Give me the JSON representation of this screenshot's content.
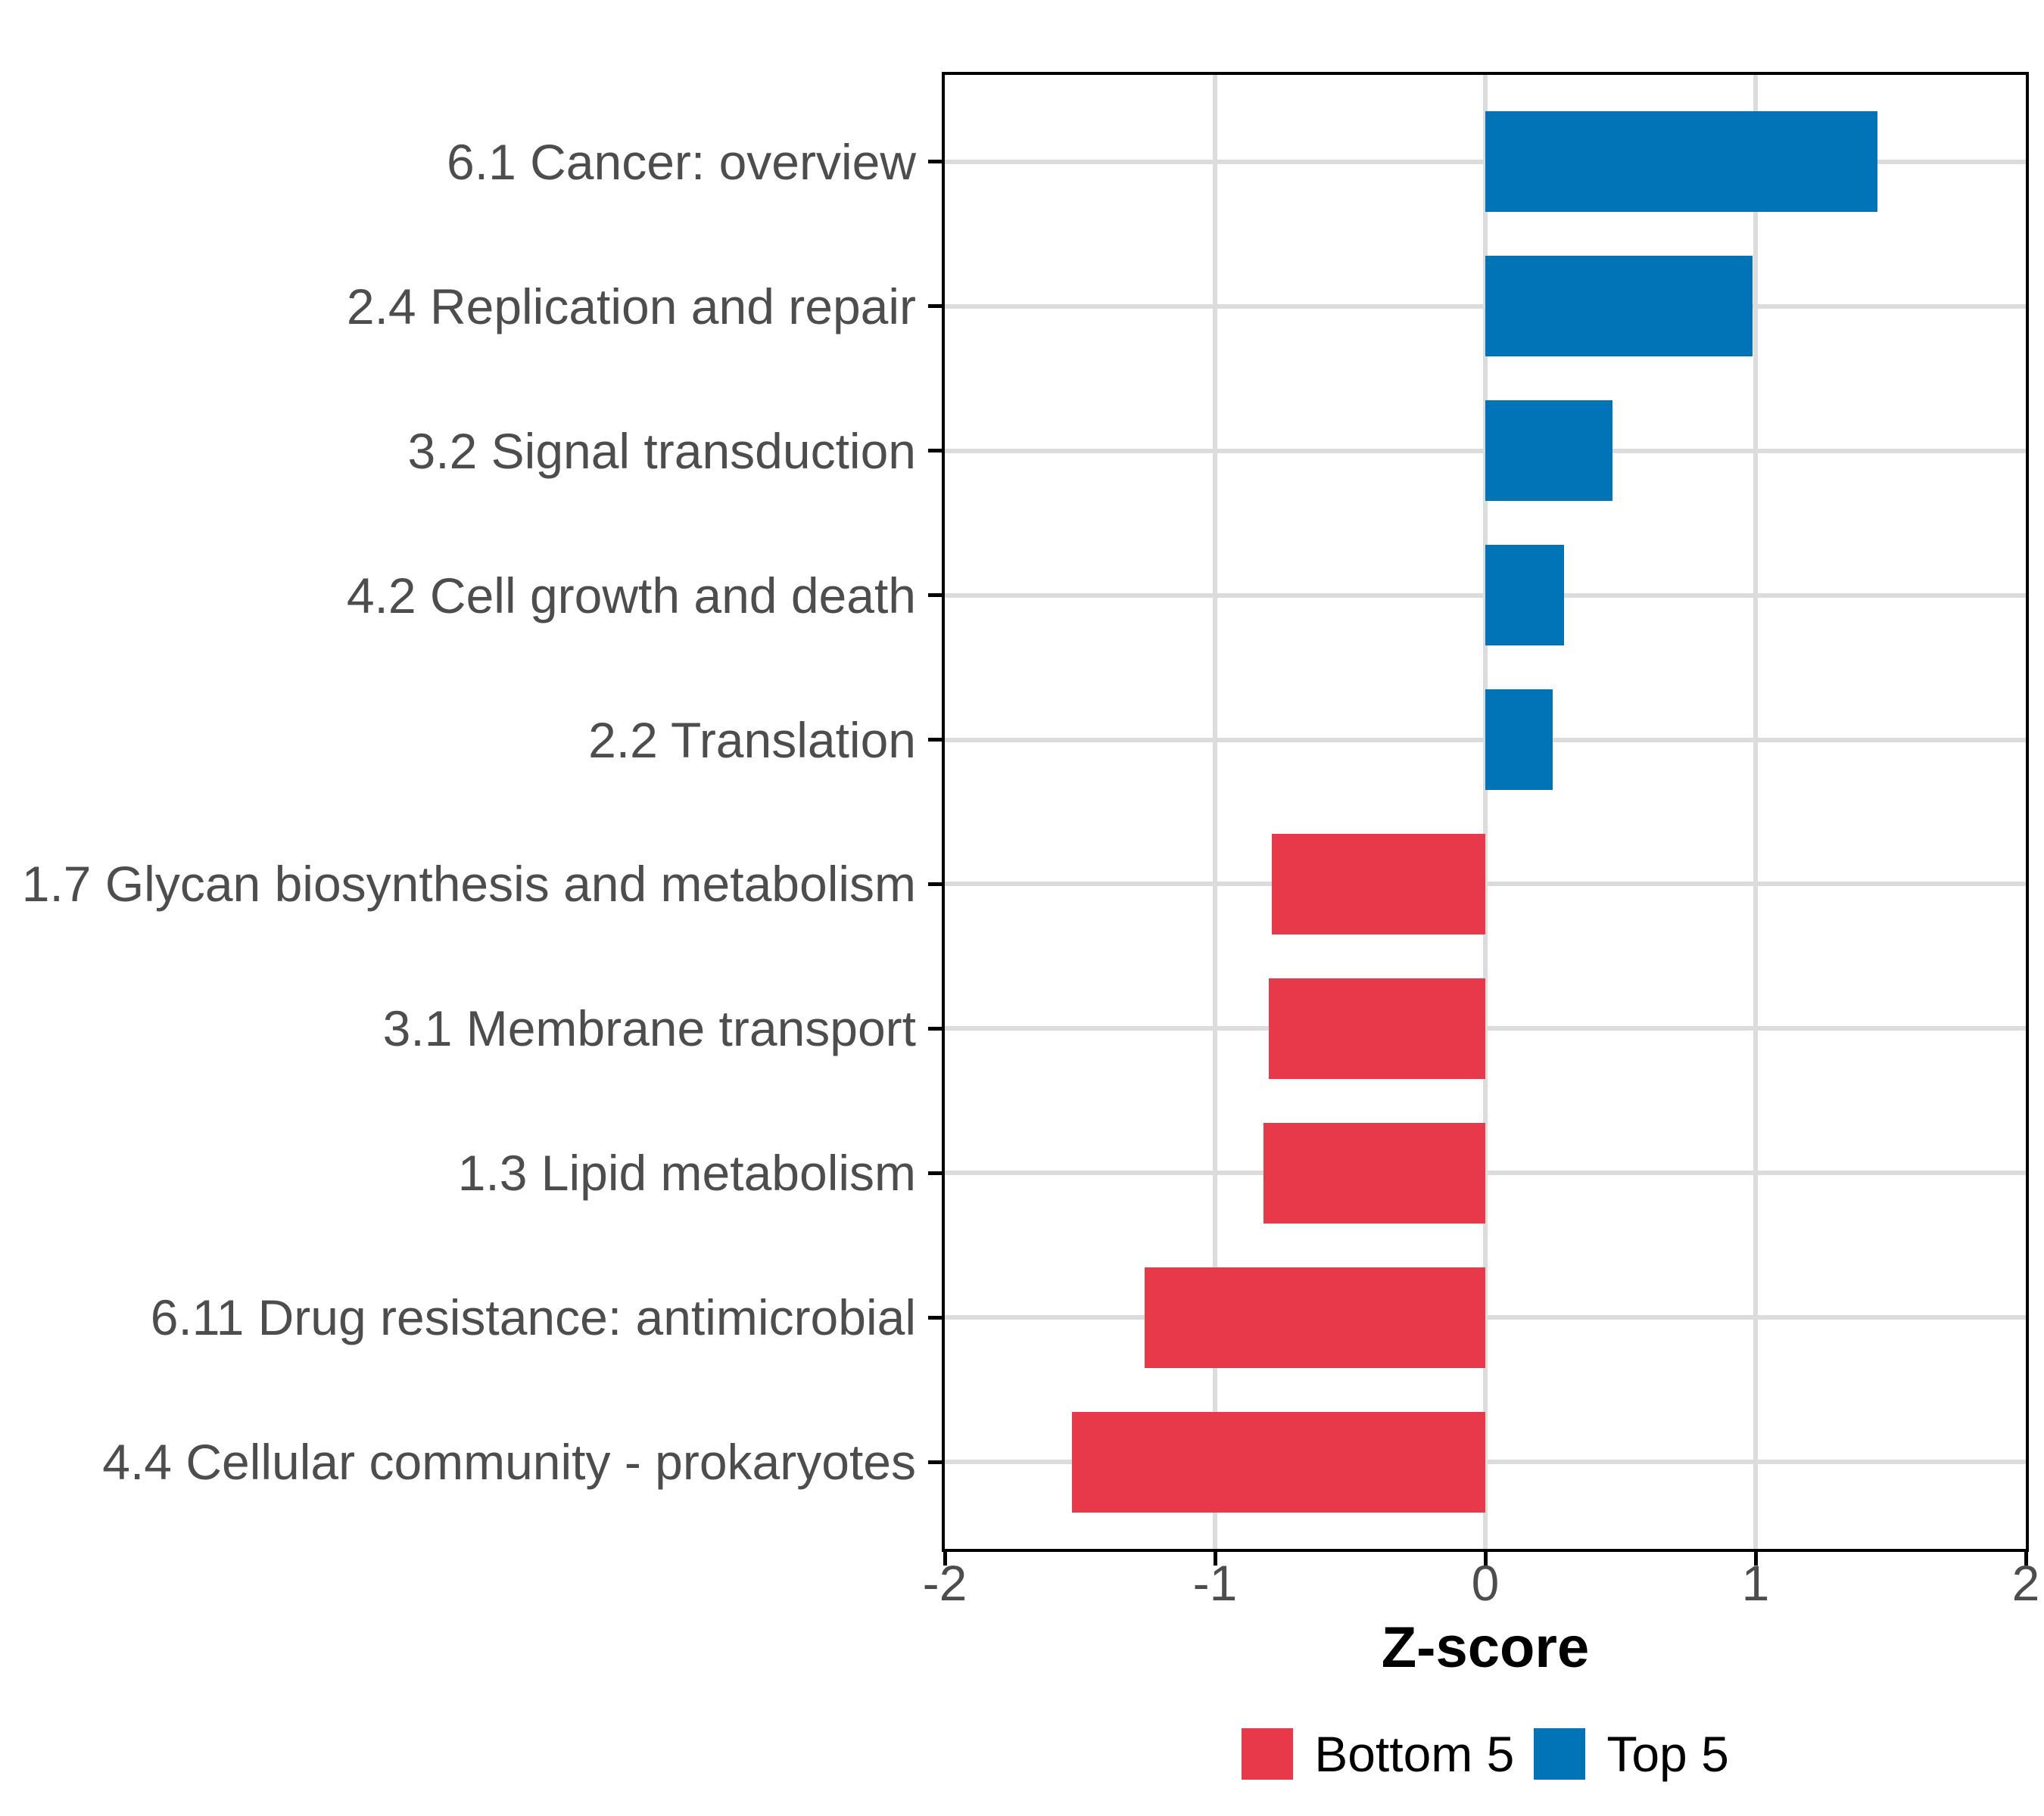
{
  "chart_data": {
    "type": "bar",
    "orientation": "horizontal",
    "title": "",
    "xlabel": "Z-score",
    "categories": [
      "6.1 Cancer: overview",
      "2.4 Replication and repair",
      "3.2 Signal transduction",
      "4.2 Cell growth and death",
      "2.2 Translation",
      "1.7 Glycan biosynthesis and metabolism",
      "3.1 Membrane transport",
      "1.3 Lipid metabolism",
      "6.11 Drug resistance: antimicrobial",
      "4.4 Cellular community - prokaryotes"
    ],
    "values": [
      1.45,
      0.99,
      0.47,
      0.29,
      0.25,
      -0.79,
      -0.8,
      -0.82,
      -1.26,
      -1.53
    ],
    "groups": [
      "Top 5",
      "Top 5",
      "Top 5",
      "Top 5",
      "Top 5",
      "Bottom 5",
      "Bottom 5",
      "Bottom 5",
      "Bottom 5",
      "Bottom 5"
    ],
    "xlim": [
      -2,
      2
    ],
    "x_ticks": [
      -2,
      -1,
      0,
      1,
      2
    ],
    "x_tick_labels": [
      "-2",
      "-1",
      "0",
      "1",
      "2"
    ],
    "v_gridlines": [
      -1,
      0,
      1
    ],
    "grid": "major-only",
    "bar_width_fraction": 0.7,
    "legend": {
      "position": "bottom",
      "items": [
        {
          "label": "Bottom 5",
          "color": "#E7394A"
        },
        {
          "label": "Top 5",
          "color": "#0074B6"
        }
      ]
    }
  },
  "colors": {
    "top5": "#0074B6",
    "bottom5": "#E7394A",
    "gridline": "#DCDCDC",
    "axis_text": "#4D4D4D",
    "panel_border": "#000000",
    "background": "#FFFFFF"
  }
}
